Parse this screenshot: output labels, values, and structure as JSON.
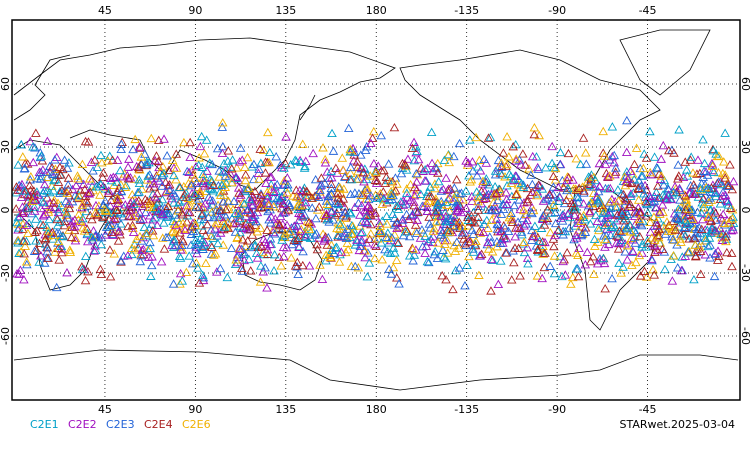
{
  "map": {
    "lon_ticks": [
      45,
      90,
      135,
      180,
      -135,
      -90,
      -45
    ],
    "lat_ticks": [
      60,
      30,
      0,
      -30,
      -60
    ],
    "legend": [
      {
        "name": "C2E1",
        "color": "#00a0c8"
      },
      {
        "name": "C2E2",
        "color": "#a010c0"
      },
      {
        "name": "C2E3",
        "color": "#2464d8"
      },
      {
        "name": "C2E4",
        "color": "#a82020"
      },
      {
        "name": "C2E6",
        "color": "#f0b000"
      }
    ],
    "footer": "STARwet.2025-03-04"
  }
}
